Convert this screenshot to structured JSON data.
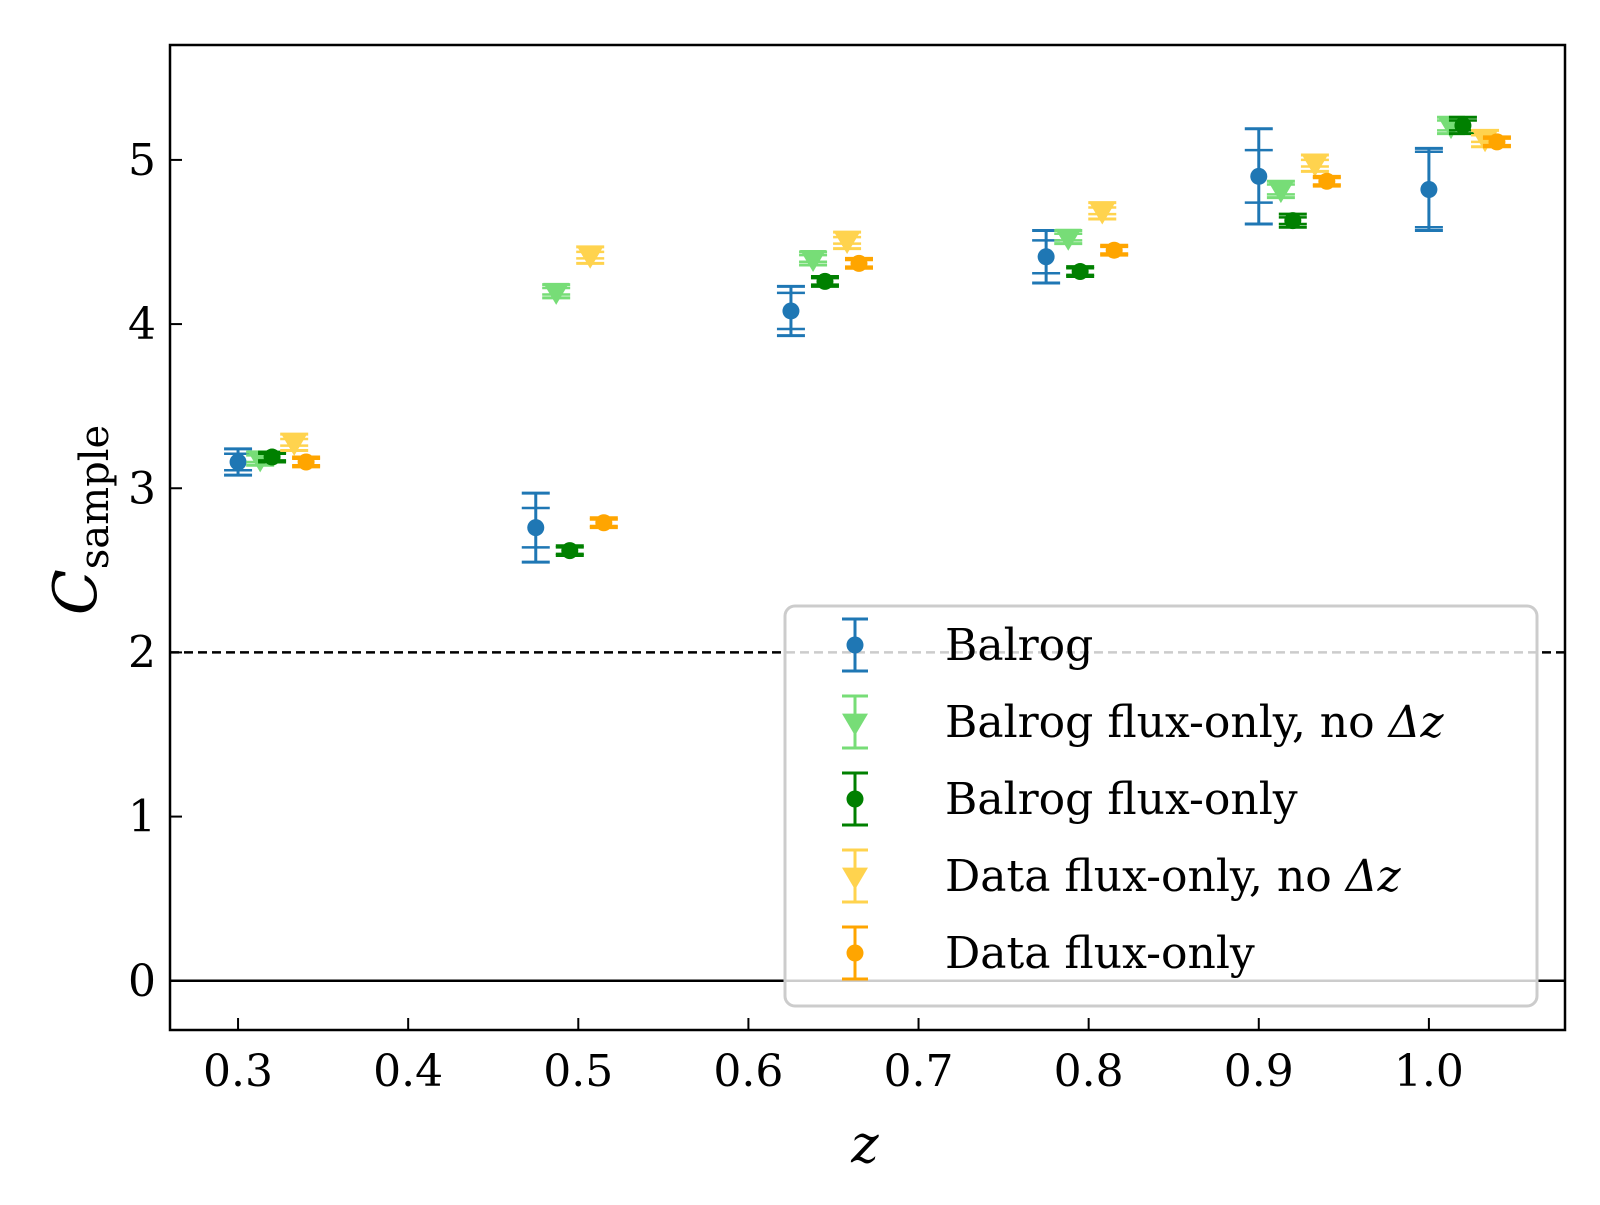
{
  "chart_data": {
    "type": "scatter",
    "title": "",
    "xlabel": "z",
    "ylabel_main": "C",
    "ylabel_sub": "sample",
    "xlim": [
      0.26,
      1.08
    ],
    "ylim": [
      -0.3,
      5.7
    ],
    "x_ticks": [
      0.3,
      0.4,
      0.5,
      0.6,
      0.7,
      0.8,
      0.9,
      1.0
    ],
    "x_tick_labels": [
      "0.3",
      "0.4",
      "0.5",
      "0.6",
      "0.7",
      "0.8",
      "0.9",
      "1.0"
    ],
    "y_ticks": [
      0,
      1,
      2,
      3,
      4,
      5
    ],
    "y_tick_labels": [
      "0",
      "1",
      "2",
      "3",
      "4",
      "5"
    ],
    "hlines": [
      {
        "y": 0,
        "style": "solid",
        "color": "#000000"
      },
      {
        "y": 2,
        "style": "dashed",
        "color": "#000000"
      }
    ],
    "legend": {
      "placement": "lower-right",
      "entries": [
        {
          "label_prefix": "Balrog",
          "label_symbol": ""
        },
        {
          "label_prefix": "Balrog flux-only, no ",
          "label_symbol": "Δz"
        },
        {
          "label_prefix": "Balrog flux-only",
          "label_symbol": ""
        },
        {
          "label_prefix": "Data flux-only, no ",
          "label_symbol": "Δz"
        },
        {
          "label_prefix": "Data flux-only",
          "label_symbol": ""
        }
      ]
    },
    "series": [
      {
        "name": "Balrog",
        "marker": "circle",
        "color": "#1f77b4",
        "points": [
          {
            "x": 0.3,
            "y": 3.16,
            "err": 0.08,
            "inner_err": 0.05
          },
          {
            "x": 0.475,
            "y": 2.76,
            "err": 0.21,
            "inner_err": 0.12
          },
          {
            "x": 0.625,
            "y": 4.08,
            "err": 0.15,
            "inner_err": 0.11
          },
          {
            "x": 0.775,
            "y": 4.41,
            "err": 0.16,
            "inner_err": 0.1
          },
          {
            "x": 0.9,
            "y": 4.9,
            "err": 0.29,
            "inner_err": 0.16
          },
          {
            "x": 1.0,
            "y": 4.82,
            "err": 0.25,
            "inner_err": 0.23
          }
        ]
      },
      {
        "name": "Balrog flux-only, no Δz",
        "marker": "triangle-down",
        "color": "#77dd77",
        "points": [
          {
            "x": 0.313,
            "y": 3.18,
            "err": 0.04,
            "inner_err": 0.02
          },
          {
            "x": 0.487,
            "y": 4.2,
            "err": 0.04,
            "inner_err": 0.02
          },
          {
            "x": 0.638,
            "y": 4.4,
            "err": 0.04,
            "inner_err": 0.02
          },
          {
            "x": 0.788,
            "y": 4.53,
            "err": 0.04,
            "inner_err": 0.02
          },
          {
            "x": 0.913,
            "y": 4.82,
            "err": 0.05,
            "inner_err": 0.03
          },
          {
            "x": 1.013,
            "y": 5.21,
            "err": 0.05,
            "inner_err": 0.03
          }
        ]
      },
      {
        "name": "Balrog flux-only",
        "marker": "circle",
        "color": "#008000",
        "points": [
          {
            "x": 0.32,
            "y": 3.19,
            "err": 0.03,
            "inner_err": 0.02
          },
          {
            "x": 0.495,
            "y": 2.62,
            "err": 0.03,
            "inner_err": 0.02
          },
          {
            "x": 0.645,
            "y": 4.26,
            "err": 0.03,
            "inner_err": 0.02
          },
          {
            "x": 0.795,
            "y": 4.32,
            "err": 0.03,
            "inner_err": 0.02
          },
          {
            "x": 0.92,
            "y": 4.63,
            "err": 0.04,
            "inner_err": 0.02
          },
          {
            "x": 1.02,
            "y": 5.21,
            "err": 0.05,
            "inner_err": 0.03
          }
        ]
      },
      {
        "name": "Data flux-only, no Δz",
        "marker": "triangle-down",
        "color": "#ffd34e",
        "points": [
          {
            "x": 0.333,
            "y": 3.28,
            "err": 0.05,
            "inner_err": 0.02
          },
          {
            "x": 0.507,
            "y": 4.42,
            "err": 0.05,
            "inner_err": 0.02
          },
          {
            "x": 0.658,
            "y": 4.51,
            "err": 0.05,
            "inner_err": 0.02
          },
          {
            "x": 0.808,
            "y": 4.69,
            "err": 0.05,
            "inner_err": 0.02
          },
          {
            "x": 0.933,
            "y": 4.98,
            "err": 0.05,
            "inner_err": 0.02
          },
          {
            "x": 1.033,
            "y": 5.13,
            "err": 0.05,
            "inner_err": 0.02
          }
        ]
      },
      {
        "name": "Data flux-only",
        "marker": "circle",
        "color": "#ffa500",
        "points": [
          {
            "x": 0.34,
            "y": 3.16,
            "err": 0.03,
            "inner_err": 0.02
          },
          {
            "x": 0.515,
            "y": 2.79,
            "err": 0.03,
            "inner_err": 0.02
          },
          {
            "x": 0.665,
            "y": 4.37,
            "err": 0.03,
            "inner_err": 0.02
          },
          {
            "x": 0.815,
            "y": 4.45,
            "err": 0.03,
            "inner_err": 0.02
          },
          {
            "x": 0.94,
            "y": 4.87,
            "err": 0.03,
            "inner_err": 0.02
          },
          {
            "x": 1.04,
            "y": 5.11,
            "err": 0.03,
            "inner_err": 0.02
          }
        ]
      }
    ]
  }
}
